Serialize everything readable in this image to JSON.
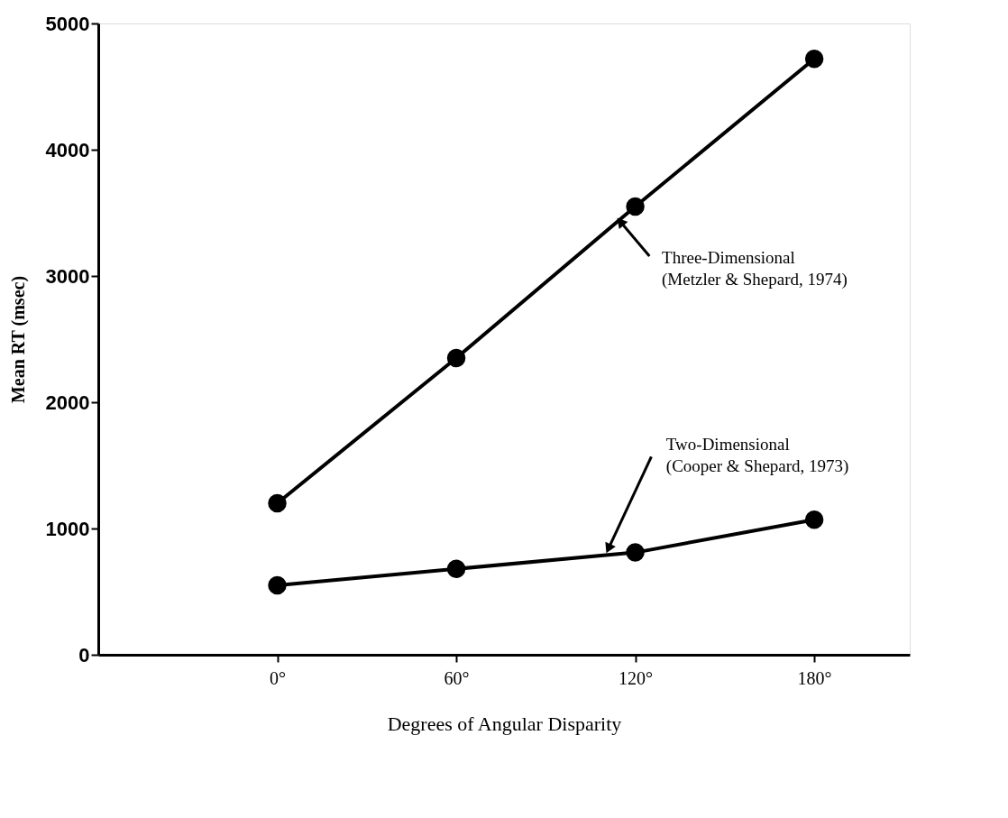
{
  "chart_data": {
    "type": "line",
    "xlabel": "Degrees of Angular Disparity",
    "ylabel": "Mean RT (msec)",
    "x": [
      0,
      60,
      120,
      180
    ],
    "series": [
      {
        "color": "#000000",
        "values": [
          1200,
          2350,
          3550,
          4720
        ]
      },
      {
        "color": "#000000",
        "values": [
          550,
          680,
          810,
          1070
        ]
      }
    ],
    "xlim": [
      -60,
      212
    ],
    "xticks": [
      {
        "value": 0,
        "label": "0°"
      },
      {
        "value": 60,
        "label": "60°"
      },
      {
        "value": 120,
        "label": "120°"
      },
      {
        "value": 180,
        "label": "180°"
      }
    ],
    "ylim": [
      0,
      5000
    ],
    "yticks": [
      0,
      1000,
      2000,
      3000,
      4000,
      5000
    ],
    "marker": "circle",
    "line_style": "solid",
    "grid": false,
    "annotations": [
      {
        "text": "Three-Dimensional\n(Metzler & Shepard, 1974)",
        "x": 115,
        "y": 3430
      },
      {
        "text": "Two-Dimensional\n(Cooper & Shepard, 1973)",
        "x": 111,
        "y": 840
      }
    ]
  }
}
